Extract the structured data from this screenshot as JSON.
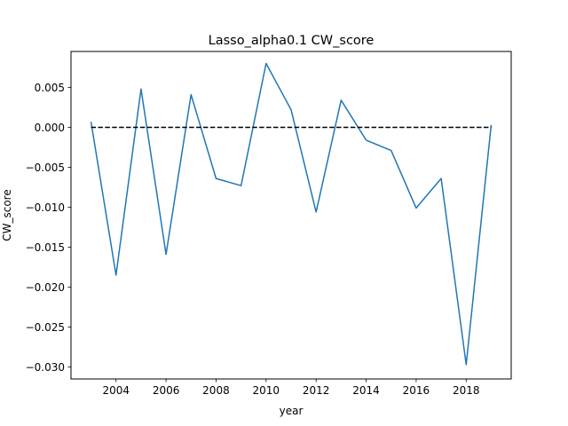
{
  "chart_data": {
    "type": "line",
    "title": "Lasso_alpha0.1 CW_score",
    "xlabel": "year",
    "ylabel": "CW_score",
    "xlim": [
      2002.2,
      2019.8
    ],
    "ylim": [
      -0.0315,
      0.0095
    ],
    "xticks": [
      2004,
      2006,
      2008,
      2010,
      2012,
      2014,
      2016,
      2018
    ],
    "xtick_labels": [
      "2004",
      "2006",
      "2008",
      "2010",
      "2012",
      "2014",
      "2016",
      "2018"
    ],
    "yticks": [
      0.005,
      0.0,
      -0.005,
      -0.01,
      -0.015,
      -0.02,
      -0.025,
      -0.03
    ],
    "ytick_labels": [
      "0.005",
      "0.000",
      "−0.005",
      "−0.010",
      "−0.015",
      "−0.020",
      "−0.025",
      "−0.030"
    ],
    "grid": false,
    "series": [
      {
        "color": "#1f77b4",
        "style": "solid",
        "x": [
          2003,
          2004,
          2005,
          2006,
          2007,
          2008,
          2009,
          2010,
          2011,
          2012,
          2013,
          2014,
          2015,
          2016,
          2017,
          2018,
          2019
        ],
        "y": [
          0.0007,
          -0.0185,
          0.0048,
          -0.0159,
          0.0041,
          -0.0064,
          -0.0073,
          0.008,
          0.0022,
          -0.0106,
          0.0034,
          -0.0016,
          -0.0029,
          -0.0101,
          -0.0064,
          -0.0297,
          0.0003
        ]
      },
      {
        "color": "#000000",
        "style": "dashed",
        "x": [
          2003,
          2019
        ],
        "y": [
          0.0,
          0.0
        ]
      }
    ]
  }
}
